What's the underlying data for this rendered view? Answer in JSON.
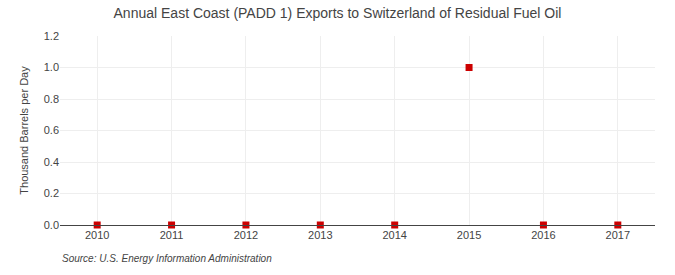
{
  "chart_data": {
    "type": "scatter",
    "title": "Annual East Coast (PADD 1) Exports to Switzerland of Residual Fuel Oil",
    "ylabel": "Thousand Barrels per Day",
    "annotations": [
      "Source: U.S. Energy Information Administration"
    ],
    "x": [
      2010,
      2011,
      2012,
      2013,
      2014,
      2015,
      2016,
      2017
    ],
    "values": [
      0.0,
      0.0,
      0.0,
      0.0,
      0.0,
      1.0,
      0.0,
      0.0
    ],
    "color": "#cc0000",
    "marker": "square",
    "xlim": [
      2009.5,
      2017.5
    ],
    "xticks": [
      2010,
      2011,
      2012,
      2013,
      2014,
      2015,
      2016,
      2017
    ],
    "ylim": [
      0.0,
      1.2
    ],
    "yticks": [
      {
        "value": 0.0,
        "label": "0.0"
      },
      0.2,
      0.4,
      0.6,
      0.8,
      {
        "value": 1.0,
        "label": "1.0"
      },
      1.2
    ],
    "grid": true
  }
}
